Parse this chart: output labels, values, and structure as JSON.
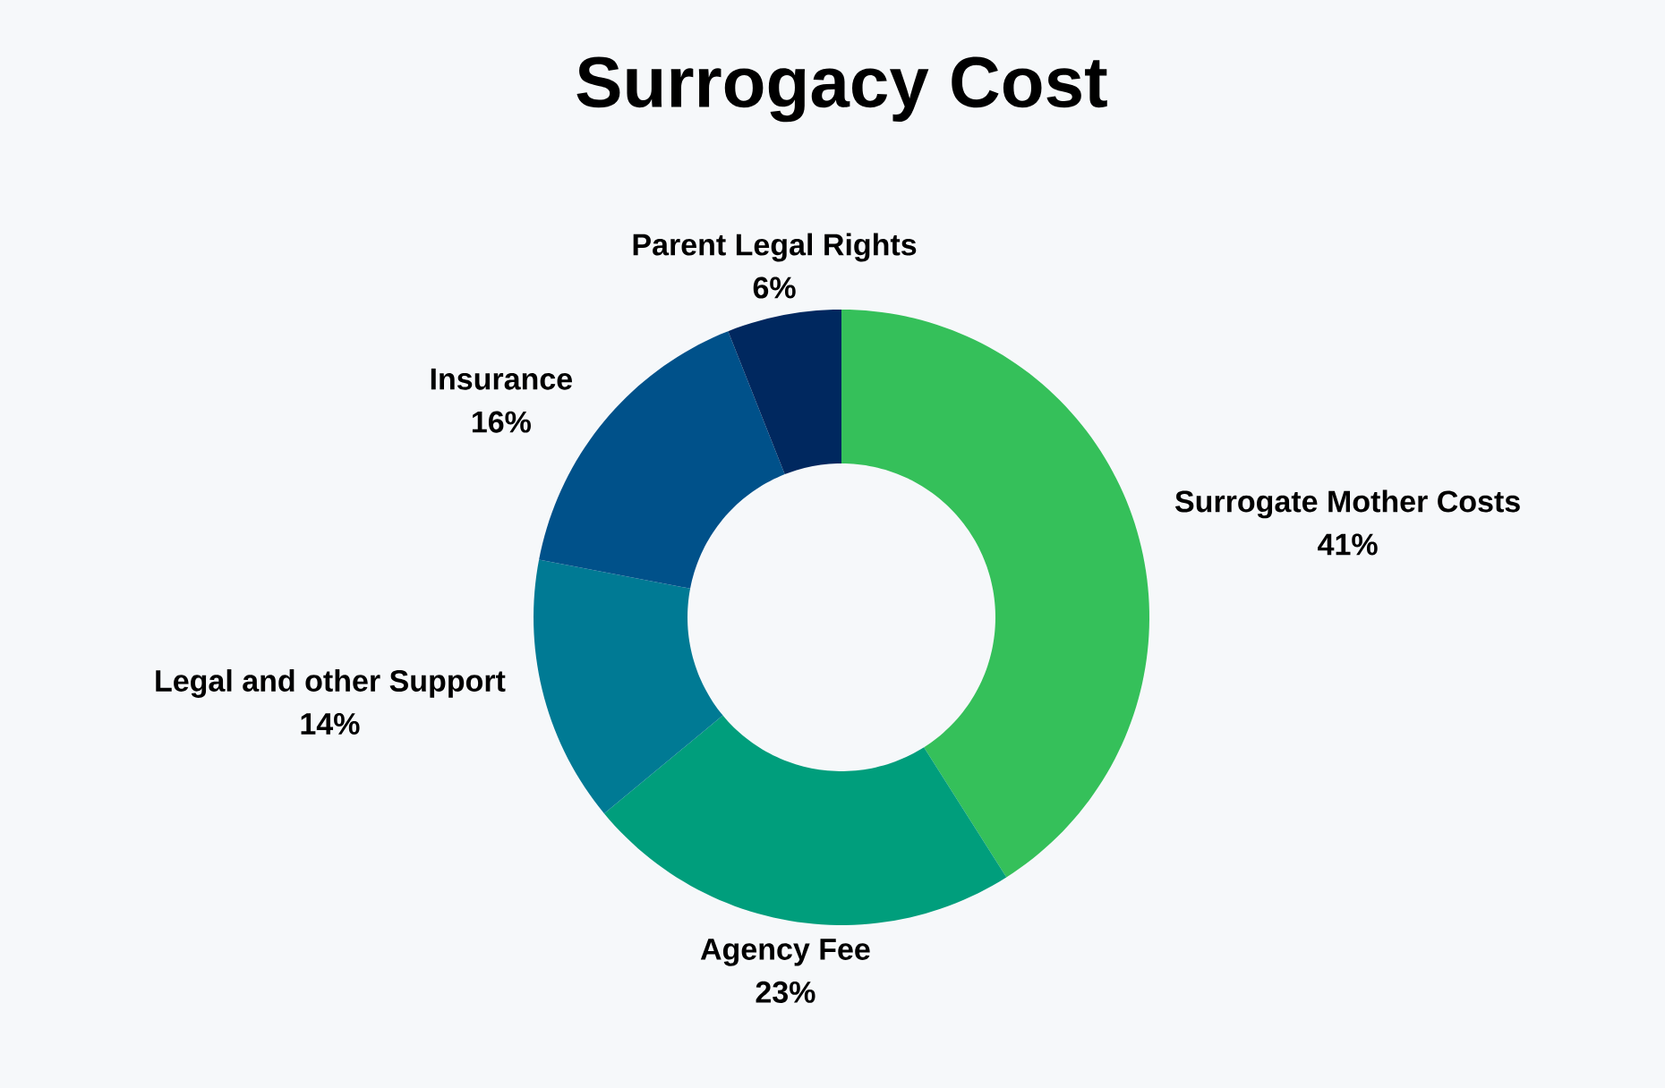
{
  "chart_data": {
    "type": "donut",
    "title": "Surrogacy Cost",
    "categories": [
      "Surrogate Mother Costs",
      "Agency Fee",
      "Legal and other Support",
      "Insurance",
      "Parent Legal Rights"
    ],
    "values": [
      41,
      23,
      14,
      16,
      6
    ],
    "value_labels": [
      "41%",
      "23%",
      "14%",
      "16%",
      "6%"
    ],
    "colors": [
      "#35c05a",
      "#009e7c",
      "#007a94",
      "#00518a",
      "#00285f"
    ]
  }
}
